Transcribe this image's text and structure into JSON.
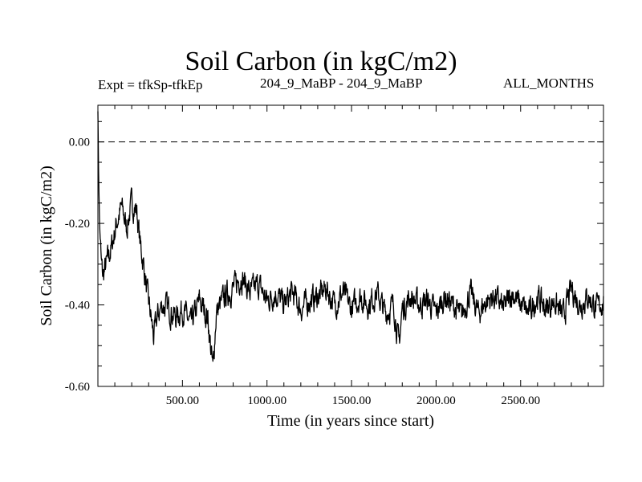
{
  "chart_data": {
    "type": "line",
    "title": "Soil Carbon (in kgC/m2)",
    "subtitle_left": "Expt = tfkSp-tfkEp",
    "subtitle_center": "204_9_MaBP - 204_9_MaBP",
    "subtitle_right": "ALL_MONTHS",
    "xlabel": "Time (in years since start)",
    "ylabel": "Soil Carbon (in kgC/m2)",
    "xlim": [
      0,
      2990
    ],
    "ylim": [
      -0.6,
      0.09
    ],
    "xticks": [
      500,
      1000,
      1500,
      2000,
      2500
    ],
    "xtick_labels": [
      "500.00",
      "1000.00",
      "1500.00",
      "2000.00",
      "2500.00"
    ],
    "yticks": [
      0.0,
      -0.2,
      -0.4,
      -0.6
    ],
    "ytick_labels": [
      "0.00",
      "-0.20",
      "-0.40",
      "-0.60"
    ],
    "reference_line": {
      "y": 0.0,
      "style": "dashed"
    },
    "series": [
      {
        "name": "Soil Carbon",
        "x": [
          0,
          5,
          10,
          20,
          30,
          50,
          80,
          110,
          140,
          170,
          200,
          230,
          250,
          270,
          290,
          310,
          330,
          350,
          380,
          420,
          460,
          500,
          550,
          600,
          650,
          680,
          700,
          750,
          800,
          850,
          900,
          950,
          1000,
          1050,
          1100,
          1150,
          1200,
          1250,
          1300,
          1350,
          1400,
          1450,
          1500,
          1550,
          1600,
          1650,
          1700,
          1750,
          1780,
          1800,
          1850,
          1900,
          1950,
          2000,
          2050,
          2100,
          2150,
          2200,
          2250,
          2300,
          2350,
          2400,
          2450,
          2500,
          2550,
          2600,
          2650,
          2700,
          2750,
          2800,
          2850,
          2900,
          2950,
          2990
        ],
        "values": [
          0.08,
          -0.1,
          -0.2,
          -0.3,
          -0.33,
          -0.3,
          -0.26,
          -0.2,
          -0.16,
          -0.21,
          -0.15,
          -0.17,
          -0.25,
          -0.3,
          -0.37,
          -0.42,
          -0.48,
          -0.43,
          -0.4,
          -0.41,
          -0.43,
          -0.41,
          -0.45,
          -0.39,
          -0.43,
          -0.56,
          -0.42,
          -0.38,
          -0.36,
          -0.33,
          -0.37,
          -0.35,
          -0.39,
          -0.37,
          -0.4,
          -0.37,
          -0.41,
          -0.39,
          -0.38,
          -0.36,
          -0.4,
          -0.37,
          -0.41,
          -0.38,
          -0.4,
          -0.37,
          -0.42,
          -0.4,
          -0.5,
          -0.41,
          -0.38,
          -0.4,
          -0.39,
          -0.42,
          -0.38,
          -0.4,
          -0.43,
          -0.37,
          -0.42,
          -0.39,
          -0.38,
          -0.41,
          -0.37,
          -0.4,
          -0.42,
          -0.38,
          -0.41,
          -0.39,
          -0.43,
          -0.36,
          -0.4,
          -0.38,
          -0.41,
          -0.39
        ]
      }
    ]
  },
  "colors": {
    "line": "#000000",
    "background": "#ffffff",
    "axes": "#000000"
  }
}
